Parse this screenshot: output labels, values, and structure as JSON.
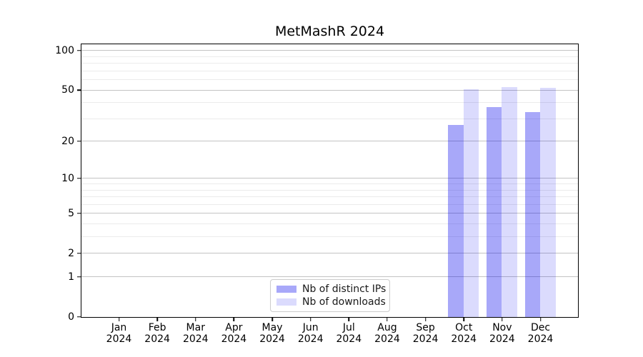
{
  "title": "MetMashR 2024",
  "colors": {
    "distinct_ips_bar": "rgba(0,0,238,0.34)",
    "downloads_bar": "rgba(0,0,238,0.14)",
    "major_grid": "#c3c3c3",
    "minor_grid": "#ebebeb",
    "axis": "#000000"
  },
  "chart_data": {
    "type": "bar",
    "title": "MetMashR 2024",
    "xlabel": "",
    "ylabel": "",
    "y_scale": "log1p",
    "grid": true,
    "legend_position": "lower center",
    "categories": [
      "Jan 2024",
      "Feb 2024",
      "Mar 2024",
      "Apr 2024",
      "May 2024",
      "Jun 2024",
      "Jul 2024",
      "Aug 2024",
      "Sep 2024",
      "Oct 2024",
      "Nov 2024",
      "Dec 2024"
    ],
    "month_labels": [
      "Jan",
      "Feb",
      "Mar",
      "Apr",
      "May",
      "Jun",
      "Jul",
      "Aug",
      "Sep",
      "Oct",
      "Nov",
      "Dec"
    ],
    "year_label": "2024",
    "series": [
      {
        "name": "Nb of distinct IPs",
        "color": "rgba(0,0,238,0.34)",
        "values": [
          0,
          0,
          0,
          0,
          0,
          0,
          0,
          0,
          0,
          27,
          37,
          34
        ]
      },
      {
        "name": "Nb of downloads",
        "color": "rgba(0,0,238,0.14)",
        "values": [
          0,
          0,
          0,
          0,
          0,
          0,
          0,
          0,
          0,
          51,
          53,
          52
        ]
      }
    ],
    "y_major_ticks": [
      0,
      1,
      2,
      5,
      10,
      20,
      50,
      100
    ],
    "y_minor_ticks": [
      3,
      4,
      6,
      7,
      8,
      9,
      30,
      40,
      60,
      70,
      80,
      90
    ],
    "ylim": [
      0,
      111
    ]
  }
}
